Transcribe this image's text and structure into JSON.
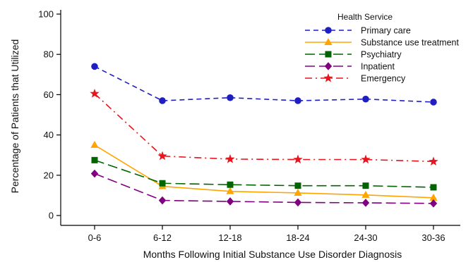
{
  "chart_data": {
    "type": "line",
    "xlabel": "Months Following Initial Substance Use Disorder Diagnosis",
    "ylabel": "Percentage of Patients that Utilized",
    "categories": [
      "0-6",
      "6-12",
      "12-18",
      "18-24",
      "24-30",
      "30-36"
    ],
    "ylim": [
      0,
      100
    ],
    "yticks": [
      0,
      20,
      40,
      60,
      80,
      100
    ],
    "grid": false,
    "legend": {
      "title": "Health Service",
      "placement": "top-right"
    },
    "series": [
      {
        "name": "Primary care",
        "values": [
          74,
          57,
          58.5,
          57,
          57.8,
          56.3
        ],
        "color": "#1f1fbf",
        "marker": "circle",
        "dash": "dashed"
      },
      {
        "name": "Substance use treatment",
        "values": [
          35,
          14.5,
          12,
          11.2,
          10.2,
          8.8
        ],
        "color": "#ffa500",
        "marker": "triangle",
        "dash": "solid"
      },
      {
        "name": "Psychiatry",
        "values": [
          27.5,
          16,
          15.3,
          14.8,
          14.8,
          14
        ],
        "color": "#006400",
        "marker": "square",
        "dash": "longdash"
      },
      {
        "name": "Inpatient",
        "values": [
          20.8,
          7.5,
          7,
          6.5,
          6.3,
          6
        ],
        "color": "#800080",
        "marker": "diamond",
        "dash": "longdash"
      },
      {
        "name": "Emergency",
        "values": [
          60.5,
          29.5,
          28,
          27.8,
          27.8,
          26.8
        ],
        "color": "#e8141e",
        "marker": "star",
        "dash": "dashdot"
      }
    ]
  }
}
